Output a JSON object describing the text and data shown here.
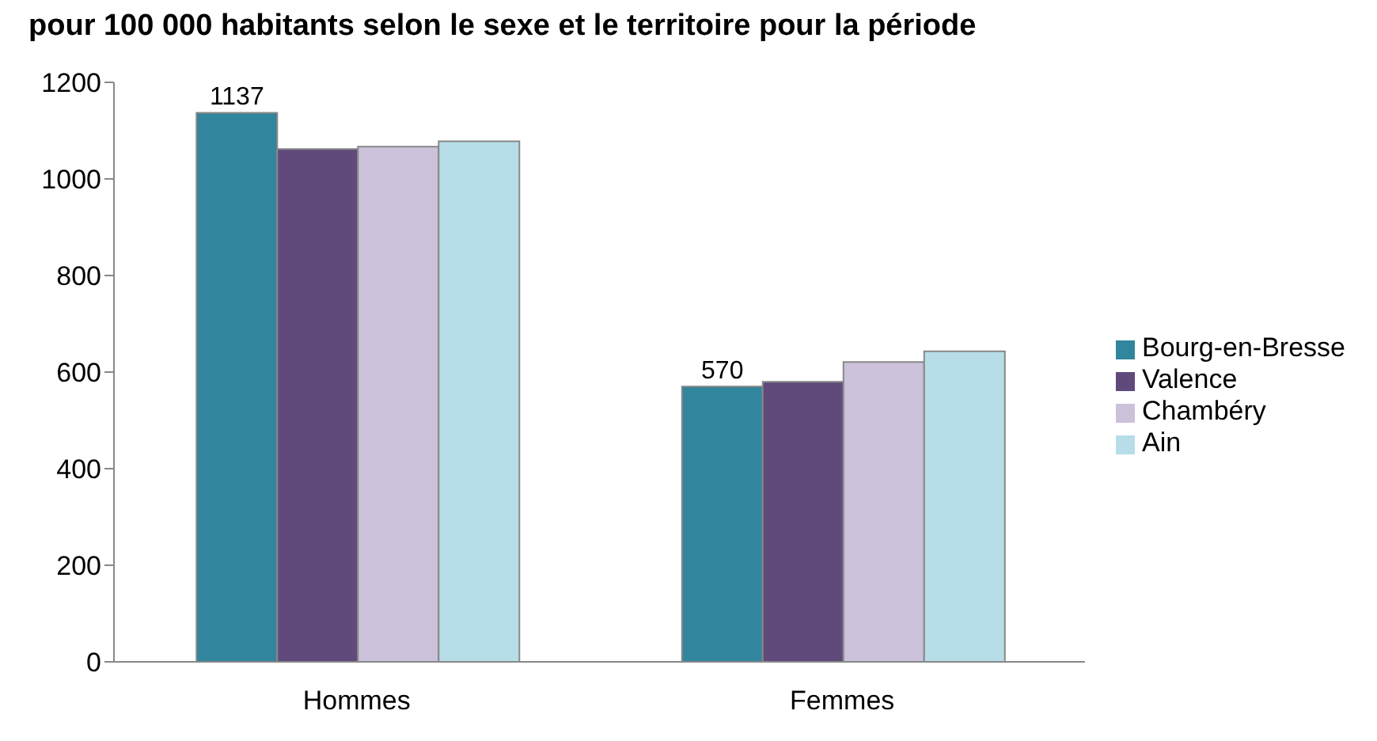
{
  "chart_data": {
    "type": "bar",
    "title": "pour 100 000 habitants selon le sexe et le territoire pour la période",
    "categories": [
      "Hommes",
      "Femmes"
    ],
    "series": [
      {
        "name": "Bourg-en-Bresse",
        "color": "#31859c",
        "values": [
          1137,
          570
        ],
        "value_labels": [
          "1137",
          "570"
        ]
      },
      {
        "name": "Valence",
        "color": "#604a7b",
        "values": [
          1062,
          580
        ]
      },
      {
        "name": "Chambéry",
        "color": "#ccc1da",
        "values": [
          1067,
          621
        ]
      },
      {
        "name": "Ain",
        "color": "#b7dee8",
        "values": [
          1078,
          643
        ]
      }
    ],
    "ylim": [
      0,
      1200
    ],
    "yticks": [
      0,
      200,
      400,
      600,
      800,
      1000,
      1200
    ],
    "grid": false,
    "legend": "right"
  }
}
